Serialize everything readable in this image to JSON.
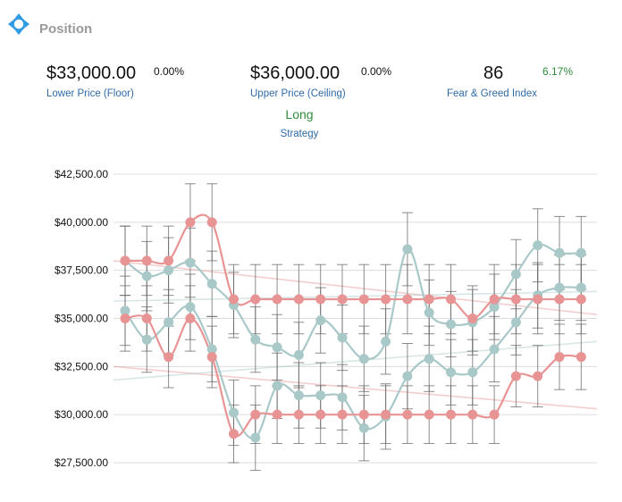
{
  "header": {
    "title": "Position",
    "icon": "move-arrows-icon",
    "accent": "#2f9be3"
  },
  "stats": {
    "floor": {
      "value": "$33,000.00",
      "pct": "0.00%",
      "label": "Lower Price (Floor)"
    },
    "ceiling": {
      "value": "$36,000.00",
      "pct": "0.00%",
      "label": "Upper Price (Ceiling)"
    },
    "fear_greed": {
      "value": "86",
      "pct": "6.17%",
      "label": "Fear & Greed Index"
    },
    "strategy": {
      "value": "Long",
      "label": "Strategy"
    }
  },
  "colors": {
    "teal": "#a9c8c8",
    "red": "#e89494",
    "grid": "#dcdcdc",
    "error": "#666666",
    "up": "#2e8b3a",
    "link": "#2f6aa8"
  },
  "chart_data": {
    "type": "line",
    "ylim": [
      27500,
      42500
    ],
    "yticks": [
      27500,
      30000,
      32500,
      35000,
      37500,
      40000,
      42500
    ],
    "ytick_labels": [
      "$27,500.00",
      "$30,000.00",
      "$32,500.00",
      "$35,000.00",
      "$37,500.00",
      "$40,000.00",
      "$42,500.00"
    ],
    "grid": true,
    "legend": "none",
    "x_count": 22,
    "series": [
      {
        "color": "teal",
        "values": [
          38000,
          37200,
          37500,
          37900,
          36800,
          35700,
          33900,
          33500,
          33100,
          34900,
          34000,
          32900,
          33800,
          38600,
          35300,
          34700,
          34800,
          35600,
          37300,
          38800,
          38400,
          38400
        ],
        "err": [
          1800,
          1800,
          1700,
          1800,
          1700,
          1700,
          1700,
          1700,
          1700,
          1700,
          1700,
          1700,
          1700,
          1900,
          1700,
          1700,
          1700,
          1700,
          1800,
          1900,
          1900,
          1900
        ]
      },
      {
        "color": "teal",
        "values": [
          35400,
          33900,
          34800,
          35600,
          33400,
          30100,
          28800,
          31500,
          31000,
          31000,
          30900,
          29300,
          29900,
          32000,
          32900,
          32200,
          32200,
          33400,
          34800,
          36200,
          36600,
          36600
        ],
        "err": [
          1800,
          1700,
          1700,
          1700,
          1700,
          1700,
          1700,
          1700,
          1700,
          1700,
          1700,
          1700,
          1700,
          1700,
          1700,
          1700,
          1700,
          1700,
          1700,
          1700,
          1700,
          1700
        ]
      },
      {
        "color": "red",
        "values": [
          38000,
          38000,
          38000,
          40000,
          40000,
          36000,
          36000,
          36000,
          36000,
          36000,
          36000,
          36000,
          36000,
          36000,
          36000,
          36000,
          35000,
          36000,
          36000,
          36000,
          36000,
          36000
        ],
        "err": [
          1800,
          1800,
          1800,
          2000,
          2000,
          1800,
          1800,
          1800,
          1800,
          1800,
          1800,
          1800,
          1800,
          1800,
          1800,
          1800,
          1700,
          1800,
          1800,
          1800,
          1800,
          1800
        ]
      },
      {
        "color": "red",
        "values": [
          35000,
          35000,
          33000,
          35000,
          33000,
          29000,
          30000,
          30000,
          30000,
          30000,
          30000,
          30000,
          30000,
          30000,
          30000,
          30000,
          30000,
          30000,
          32000,
          32000,
          33000,
          33000
        ],
        "err": [
          1700,
          1700,
          1600,
          1700,
          1600,
          1500,
          1500,
          1500,
          1500,
          1500,
          1500,
          1500,
          1500,
          1500,
          1500,
          1500,
          1500,
          1500,
          1600,
          1600,
          1700,
          1700
        ]
      }
    ],
    "trendlines": [
      {
        "color": "red",
        "start": 38000,
        "end": 35200
      },
      {
        "color": "red",
        "start": 32500,
        "end": 30300
      },
      {
        "color": "teal",
        "start": 35900,
        "end": 36400
      },
      {
        "color": "teal",
        "start": 31800,
        "end": 33800
      }
    ]
  }
}
